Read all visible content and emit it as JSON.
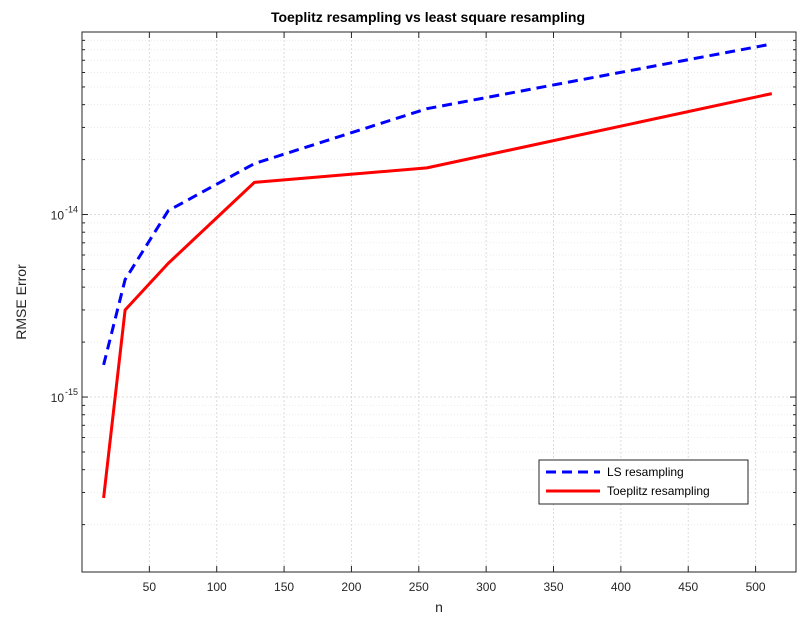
{
  "chart_data": {
    "type": "line",
    "title": "Toeplitz resampling vs least square resampling",
    "xlabel": "n",
    "ylabel": "RMSE Error",
    "xscale": "linear",
    "yscale": "log",
    "xlim": [
      0,
      530
    ],
    "ylim": [
      1.1e-16,
      1e-13
    ],
    "xticks": [
      50,
      100,
      150,
      200,
      250,
      300,
      350,
      400,
      450,
      500
    ],
    "yticks": [
      {
        "value": 1e-14,
        "base": "10",
        "exp": "-14"
      },
      {
        "value": 1e-15,
        "base": "10",
        "exp": "-15"
      }
    ],
    "grid": true,
    "minor_grid": true,
    "legend_position": "lower-right",
    "series": [
      {
        "name": "LS resampling",
        "color": "#0000ff",
        "line_style": "dashed",
        "x": [
          16,
          32,
          64,
          128,
          256,
          512
        ],
        "y": [
          1.5e-15,
          4.4e-15,
          1.05e-14,
          1.9e-14,
          3.8e-14,
          8.6e-14
        ]
      },
      {
        "name": "Toeplitz resampling",
        "color": "#ff0000",
        "line_style": "solid",
        "x": [
          16,
          32,
          64,
          128,
          256,
          512
        ],
        "y": [
          2.8e-16,
          3e-15,
          5.4e-15,
          1.5e-14,
          1.8e-14,
          4.6e-14
        ]
      }
    ]
  }
}
